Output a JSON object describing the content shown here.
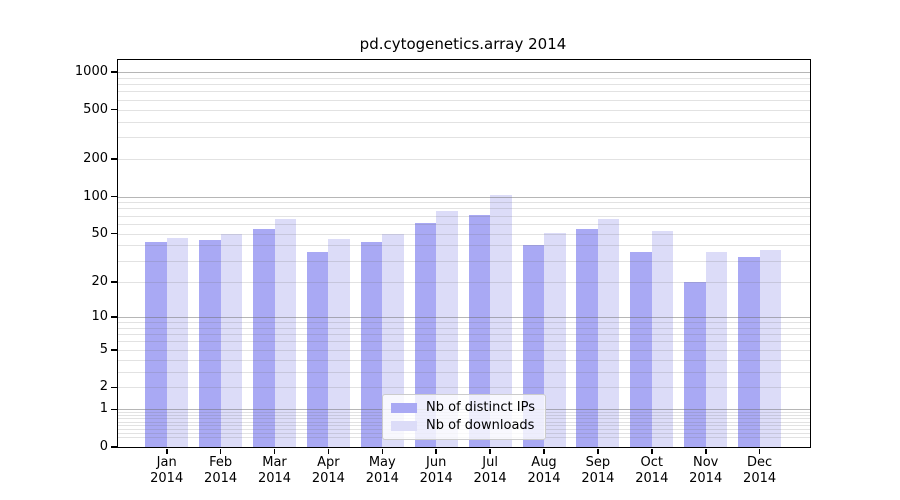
{
  "chart_data": {
    "type": "bar",
    "title": "pd.cytogenetics.array 2014",
    "categories": [
      {
        "month": "Jan",
        "year": "2014"
      },
      {
        "month": "Feb",
        "year": "2014"
      },
      {
        "month": "Mar",
        "year": "2014"
      },
      {
        "month": "Apr",
        "year": "2014"
      },
      {
        "month": "May",
        "year": "2014"
      },
      {
        "month": "Jun",
        "year": "2014"
      },
      {
        "month": "Jul",
        "year": "2014"
      },
      {
        "month": "Aug",
        "year": "2014"
      },
      {
        "month": "Sep",
        "year": "2014"
      },
      {
        "month": "Oct",
        "year": "2014"
      },
      {
        "month": "Nov",
        "year": "2014"
      },
      {
        "month": "Dec",
        "year": "2014"
      }
    ],
    "series": [
      {
        "name": "Nb of distinct IPs",
        "color": "#a9a9f4",
        "values": [
          43,
          44,
          54,
          35,
          43,
          61,
          71,
          40,
          54,
          35,
          20,
          32
        ]
      },
      {
        "name": "Nb of downloads",
        "color": "#dcdcf8",
        "values": [
          46,
          50,
          66,
          45,
          50,
          76,
          103,
          51,
          66,
          52,
          35,
          37
        ]
      }
    ],
    "xlabel": "",
    "ylabel": "",
    "yscale": "log1p",
    "ylim": [
      0,
      1250
    ],
    "yticks": [
      0,
      1,
      2,
      5,
      10,
      20,
      50,
      100,
      200,
      500,
      1000
    ],
    "grid": {
      "major_lines": [
        1,
        10,
        100,
        1000
      ],
      "minor_multiples": [
        2,
        3,
        4,
        5,
        6,
        7,
        8,
        9
      ],
      "minor_decades": [
        0.1,
        1,
        10,
        100
      ]
    },
    "legend": {
      "position": "lower center",
      "entries": [
        "Nb of distinct IPs",
        "Nb of downloads"
      ]
    }
  },
  "colors": {
    "background": "#ffffff",
    "axis_border": "#000000",
    "grid_major": "#8c8c8c",
    "grid_minor": "#d9d9d9",
    "bar_ips": "#a9a9f4",
    "bar_downloads": "#dcdcf8",
    "legend_border": "#cccccc",
    "text": "#000000"
  }
}
